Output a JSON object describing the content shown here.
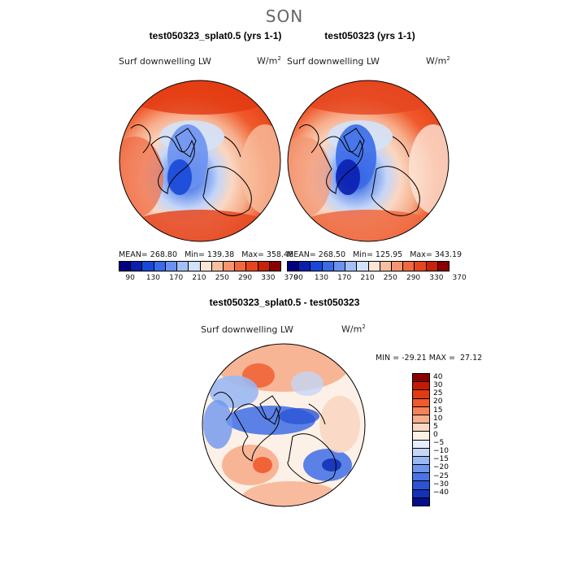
{
  "figure": {
    "season": "SON",
    "panels": [
      {
        "title": "test050323_splat0.5 (yrs 1-1)",
        "variable": "Surf downwelling LW",
        "units_base": "W/m",
        "units_exp": "2",
        "stats": "MEAN= 268.80   Min= 139.38   Max= 358.48"
      },
      {
        "title": "test050323 (yrs 1-1)",
        "variable": "Surf downwelling LW",
        "units_base": "W/m",
        "units_exp": "2",
        "stats": "MEAN= 268.50   Min= 125.95   Max= 343.19"
      }
    ],
    "diff": {
      "title": "test050323_splat0.5 - test050323",
      "variable": "Surf downwelling LW",
      "units_base": "W/m",
      "units_exp": "2",
      "minmax": "MIN = -29.21 MAX =  27.12"
    },
    "colorbar_abs": {
      "colors": [
        "#000080",
        "#0a1fb0",
        "#1848d8",
        "#3a6ae8",
        "#6b92f0",
        "#a3bff5",
        "#d3e2fa",
        "#fde6d8",
        "#f7bf9f",
        "#f49470",
        "#ef6840",
        "#e54620",
        "#c82208",
        "#8a0000"
      ],
      "labels": [
        "90",
        "130",
        "170",
        "210",
        "250",
        "290",
        "330",
        "370"
      ]
    },
    "colorbar_diff": {
      "colors": [
        "#8a0000",
        "#c41a04",
        "#e23a12",
        "#f05a2c",
        "#f58258",
        "#f7ae8c",
        "#fad7c2",
        "#fdf0e6",
        "#e6eefc",
        "#c4d6f8",
        "#9ab8f3",
        "#6f96ee",
        "#4a74e6",
        "#2c52d6",
        "#1232b8",
        "#03108a"
      ],
      "labels": [
        "40",
        "30",
        "25",
        "20",
        "15",
        "10",
        "5",
        "0",
        "−5",
        "−10",
        "−15",
        "−20",
        "−25",
        "−30",
        "−40"
      ]
    }
  }
}
